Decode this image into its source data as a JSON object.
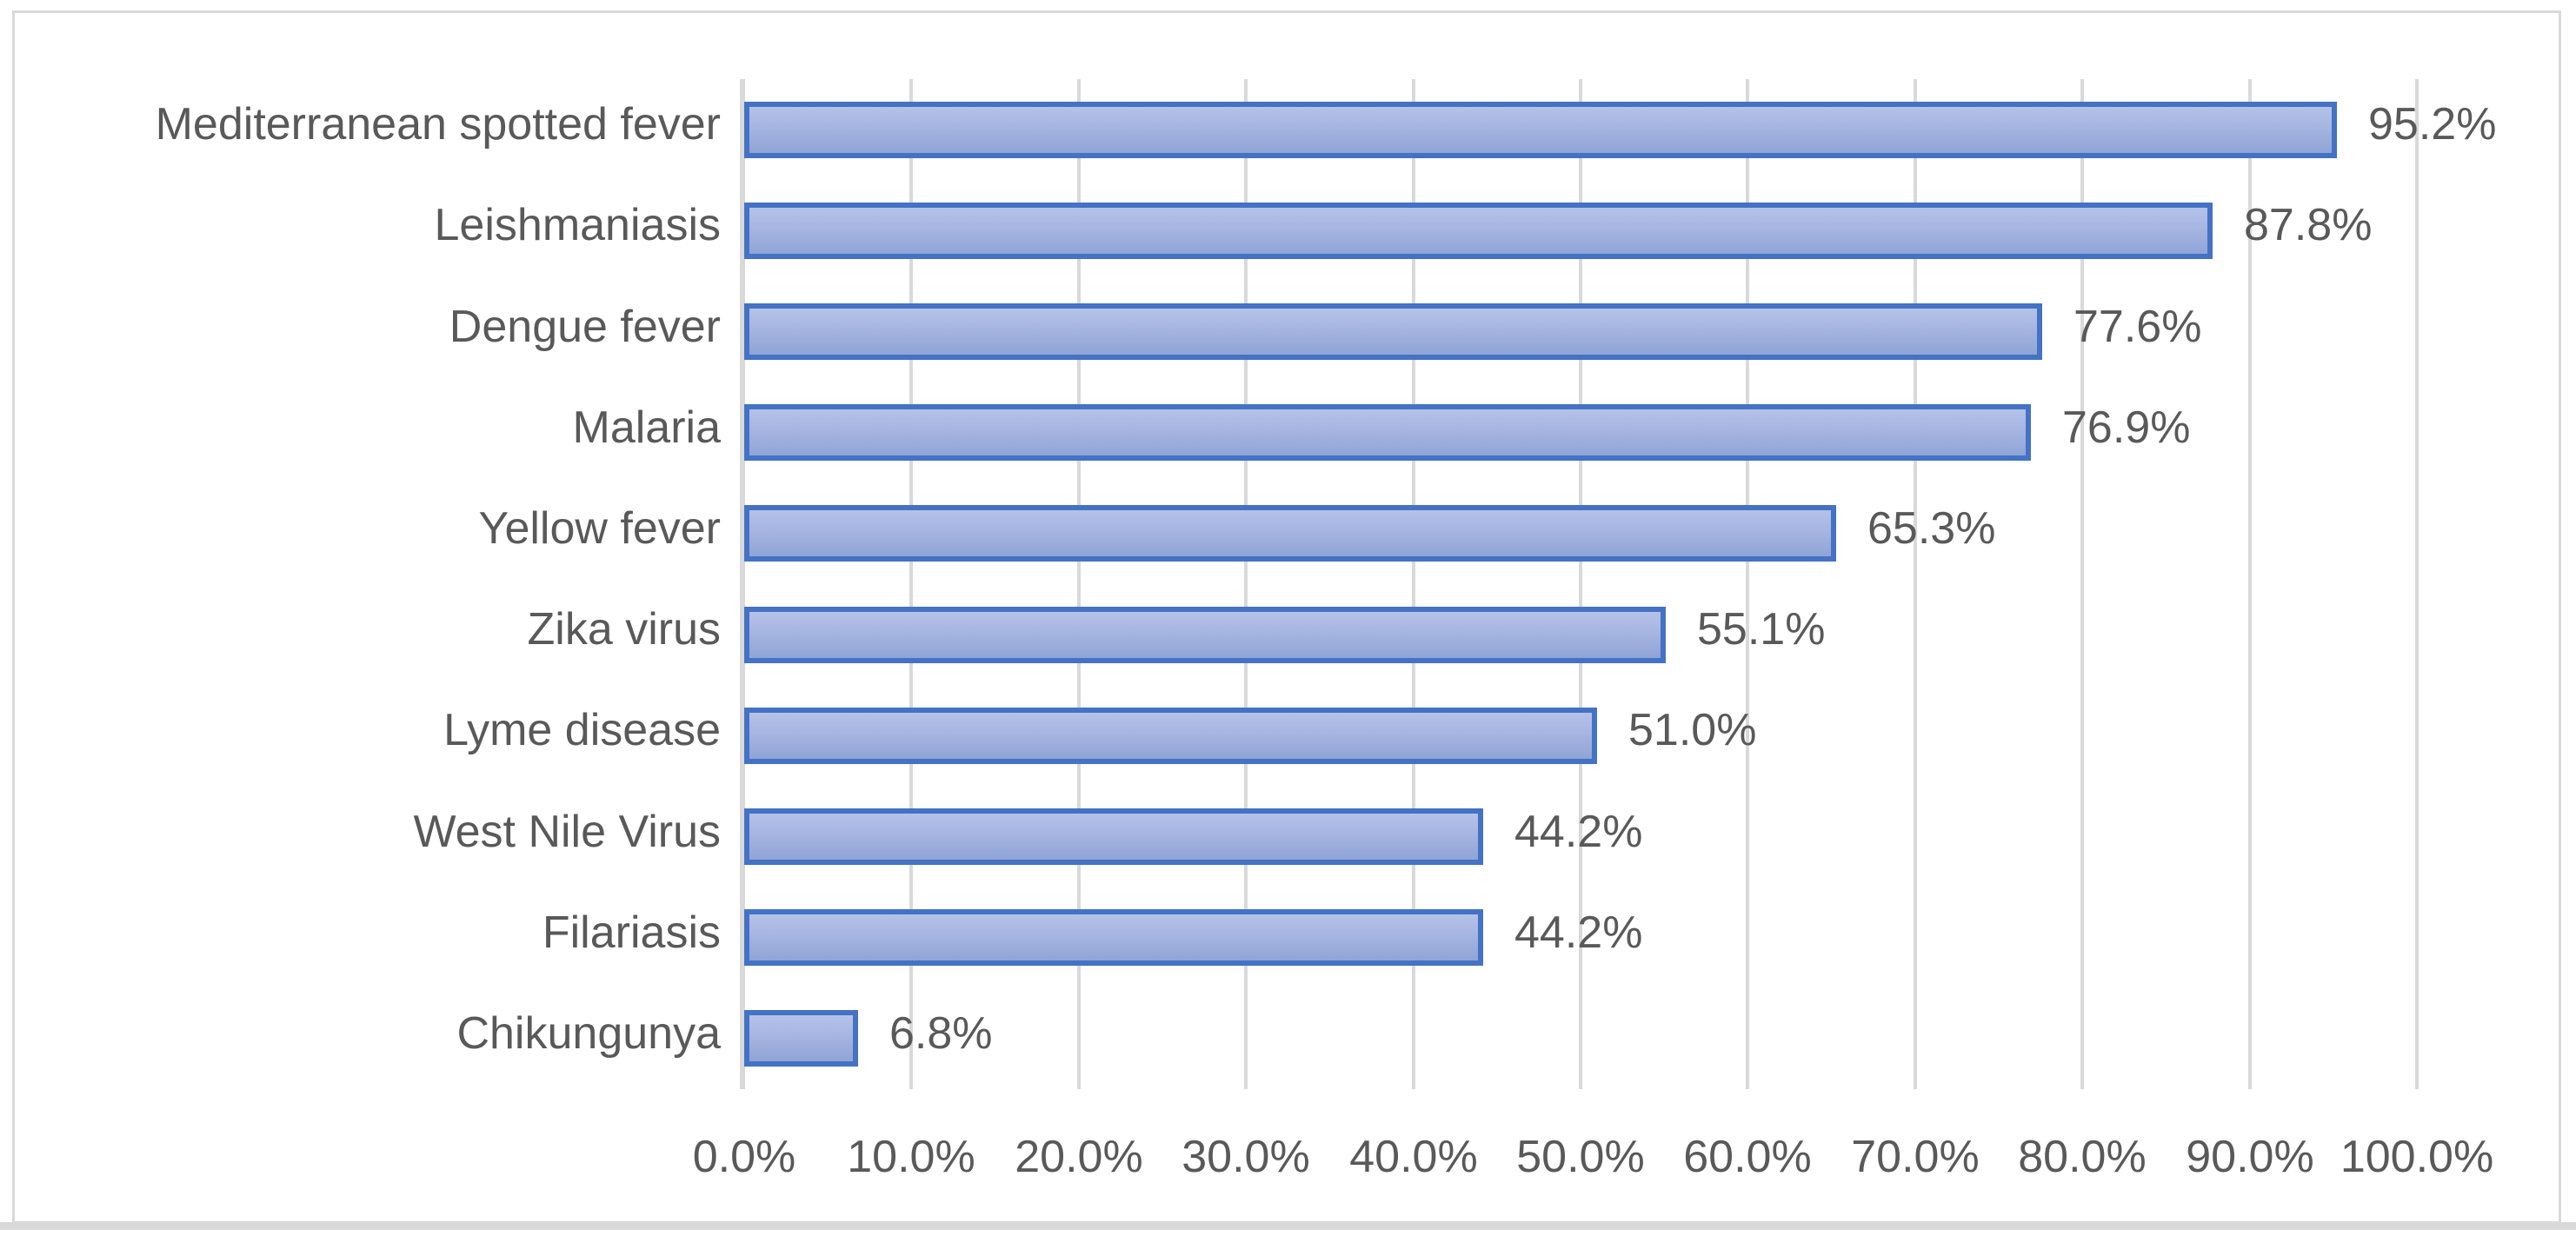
{
  "chart_data": {
    "type": "bar",
    "orientation": "horizontal",
    "title": "",
    "xlabel": "",
    "ylabel": "",
    "xlim": [
      0,
      100
    ],
    "grid": "vertical",
    "legend": "none",
    "categories": [
      "Mediterranean spotted fever",
      "Leishmaniasis",
      "Dengue fever",
      "Malaria",
      "Yellow fever",
      "Zika virus",
      "Lyme disease",
      "West Nile Virus",
      "Filariasis",
      "Chikungunya"
    ],
    "values": [
      95.2,
      87.8,
      77.6,
      76.9,
      65.3,
      55.1,
      51.0,
      44.2,
      44.2,
      6.8
    ],
    "value_labels": [
      "95.2%",
      "87.8%",
      "77.6%",
      "76.9%",
      "65.3%",
      "55.1%",
      "51.0%",
      "44.2%",
      "44.2%",
      "6.8%"
    ],
    "x_ticks": [
      0,
      10,
      20,
      30,
      40,
      50,
      60,
      70,
      80,
      90,
      100
    ],
    "x_tick_labels": [
      "0.0%",
      "10.0%",
      "20.0%",
      "30.0%",
      "40.0%",
      "50.0%",
      "60.0%",
      "70.0%",
      "80.0%",
      "90.0%",
      "100.0%"
    ],
    "colors": {
      "bar_fill_top": "#b5c2e9",
      "bar_fill_mid": "#a6b5e1",
      "bar_fill_bottom": "#8fa4d7",
      "bar_border": "#4472c4",
      "gridline": "#d9d9d9",
      "axis_line": "#d9d9d9",
      "frame_border": "#d9d9d9",
      "bottom_strip": "#d9d9d9",
      "text": "#595959",
      "background": "#ffffff"
    }
  }
}
